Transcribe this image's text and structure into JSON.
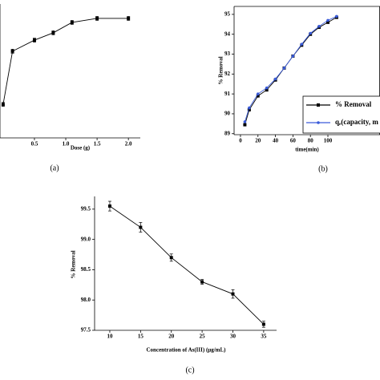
{
  "chart_data": [
    {
      "type": "line",
      "panel_label": "(a)",
      "x_label": "Dose (g)",
      "x": [
        0.0,
        0.15,
        0.5,
        0.8,
        1.1,
        1.5,
        2.0
      ],
      "series": [
        {
          "name": "% Removal",
          "color": "#000000",
          "marker": "square",
          "values": [
            70,
            85.9,
            89.2,
            91.4,
            94.5,
            95.7,
            95.7
          ],
          "errors": [
            0.6,
            0.6,
            0.6,
            0.6,
            0.6,
            0.6,
            0.6
          ]
        }
      ],
      "xlim": [
        -0.05,
        2.19
      ],
      "xticks": [
        0.5,
        {
          "value": 1.0,
          "label": "1.0"
        },
        1.5,
        {
          "value": 2.0,
          "label": "2.0"
        }
      ],
      "ylim": [
        60,
        100
      ]
    },
    {
      "type": "line",
      "panel_label": "(b)",
      "x_label": "time(min)",
      "y_label": "% Removal",
      "x": [
        5,
        10,
        20,
        30,
        40,
        50,
        60,
        70,
        80,
        90,
        100,
        110
      ],
      "series": [
        {
          "name": "% Removal",
          "color": "#000000",
          "marker": "square",
          "values": [
            89.45,
            90.2,
            90.9,
            91.2,
            91.7,
            92.3,
            92.9,
            93.45,
            94.0,
            94.35,
            94.6,
            94.85
          ]
        },
        {
          "name": "qₑ(capacity, m",
          "color": "#3a5bd9",
          "marker": "circle",
          "values": [
            89.6,
            90.3,
            91.0,
            91.3,
            91.75,
            92.3,
            92.9,
            93.5,
            94.05,
            94.4,
            94.7,
            94.9
          ]
        }
      ],
      "xlim": [
        -7.3,
        159.6
      ],
      "xticks": [
        0,
        20,
        40,
        60,
        80,
        100
      ],
      "ylim": [
        88.95,
        95.4
      ],
      "yticks": [
        89,
        90,
        91,
        92,
        93,
        94,
        95
      ],
      "legend": "lower right"
    },
    {
      "type": "line",
      "panel_label": "(c)",
      "x_label": "Concentration of As(III) (μg/mL)",
      "y_label": "% Removal",
      "x": [
        10,
        15,
        20,
        25,
        30,
        35
      ],
      "series": [
        {
          "name": "% Removal",
          "color": "#000000",
          "marker": "square",
          "values": [
            99.55,
            99.2,
            98.7,
            98.3,
            98.1,
            97.6
          ],
          "errors": [
            0.08,
            0.08,
            0.06,
            0.04,
            0.07,
            0.05
          ]
        }
      ],
      "xlim": [
        7.53,
        37.1
      ],
      "xticks": [
        10,
        15,
        20,
        25,
        30,
        35
      ],
      "ylim": [
        97.5,
        99.71
      ],
      "yticks": [
        {
          "value": 97.5,
          "label": "97.5"
        },
        {
          "value": 98.0,
          "label": "98.0"
        },
        {
          "value": 98.5,
          "label": "98.5"
        },
        {
          "value": 99.0,
          "label": "99.0"
        },
        {
          "value": 99.5,
          "label": "99.5"
        }
      ]
    }
  ]
}
